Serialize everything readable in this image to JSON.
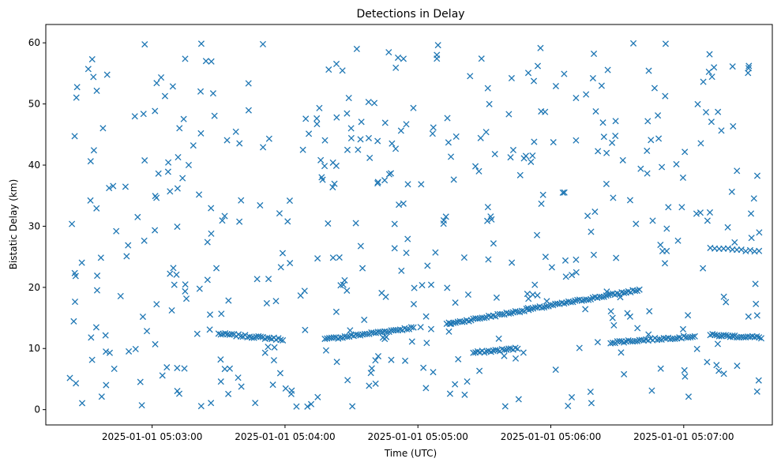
{
  "chart_data": {
    "type": "scatter",
    "title": "Detections in Delay",
    "xlabel": "Time (UTC)",
    "ylabel": "Bistatic Delay (km)",
    "marker": "x",
    "color": "#1f77b4",
    "grid": false,
    "legend": "none",
    "xlim": [
      "2025-01-01 05:02:12",
      "2025-01-01 05:07:40"
    ],
    "ylim": [
      -2.5,
      63
    ],
    "x_ticks": [
      "2025-01-01 05:03:00",
      "2025-01-01 05:04:00",
      "2025-01-01 05:05:00",
      "2025-01-01 05:06:00",
      "2025-01-01 05:07:00"
    ],
    "y_ticks": [
      0,
      10,
      20,
      30,
      40,
      50,
      60
    ],
    "tracks": [
      {
        "t_start": "2025-01-01 05:03:30",
        "t_end": "2025-01-01 05:03:59",
        "y_start": 12.4,
        "y_end": 11.5,
        "step_s": 1
      },
      {
        "t_start": "2025-01-01 05:04:18",
        "t_end": "2025-01-01 05:04:58",
        "y_start": 11.5,
        "y_end": 13.4,
        "step_s": 1
      },
      {
        "t_start": "2025-01-01 05:05:13",
        "t_end": "2025-01-01 05:06:40",
        "y_start": 14.0,
        "y_end": 19.6,
        "step_s": 1
      },
      {
        "t_start": "2025-01-01 05:05:25",
        "t_end": "2025-01-01 05:05:45",
        "y_start": 9.3,
        "y_end": 10.0,
        "step_s": 1
      },
      {
        "t_start": "2025-01-01 05:06:27",
        "t_end": "2025-01-01 05:07:05",
        "y_start": 11.0,
        "y_end": 12.0,
        "step_s": 1
      },
      {
        "t_start": "2025-01-01 05:07:12",
        "t_end": "2025-01-01 05:07:35",
        "y_start": 12.2,
        "y_end": 11.8,
        "step_s": 1
      },
      {
        "t_start": "2025-01-01 05:07:12",
        "t_end": "2025-01-01 05:07:35",
        "y_start": 26.4,
        "y_end": 25.8,
        "step_s": 2
      }
    ],
    "clutter": {
      "count": 470,
      "seed": 7,
      "t_range": [
        "2025-01-01 05:02:22",
        "2025-01-01 05:07:35"
      ],
      "y_range": [
        0.5,
        60
      ]
    }
  }
}
